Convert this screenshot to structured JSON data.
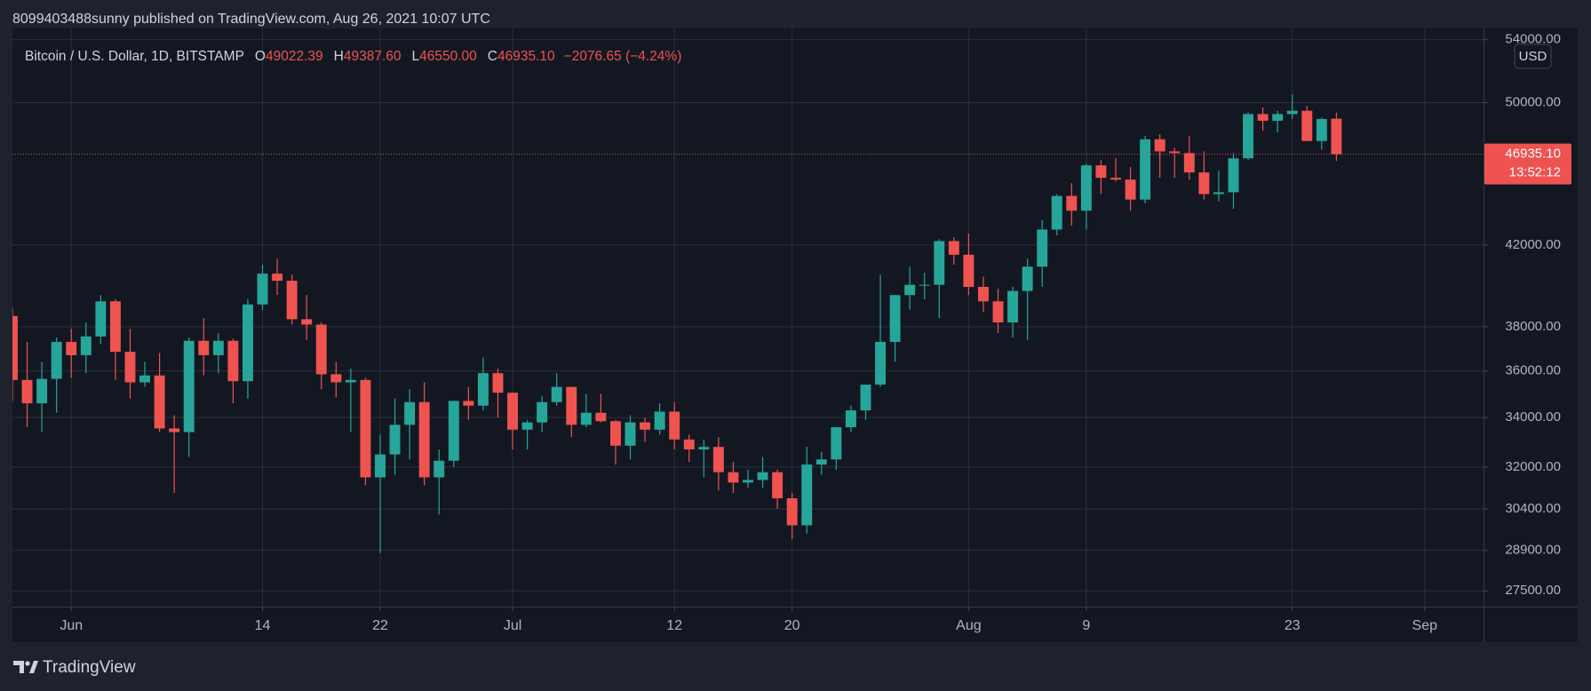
{
  "header": {
    "text": "8099403488sunny published on TradingView.com, Aug 26, 2021 10:07 UTC"
  },
  "footer": {
    "brand": "TradingView"
  },
  "chart_data": {
    "type": "candlestick",
    "symbol": "Bitcoin / U.S. Dollar, 1D, BITSTAMP",
    "ohlc_labels": [
      "O",
      "H",
      "L",
      "C"
    ],
    "ohlc_values": [
      "49022.39",
      "49387.60",
      "46550.00",
      "46935.10"
    ],
    "change": "−2076.65 (−4.24%)",
    "currency": "USD",
    "last_price_label": "46935.10",
    "countdown": "13:52:12",
    "up_color": "#26a69a",
    "down_color": "#ef5350",
    "log_scale": true,
    "grid": true,
    "x": [
      "05-28",
      "05-29",
      "05-30",
      "05-31",
      "06-01",
      "06-02",
      "06-03",
      "06-04",
      "06-05",
      "06-06",
      "06-07",
      "06-08",
      "06-09",
      "06-10",
      "06-11",
      "06-12",
      "06-13",
      "06-14",
      "06-15",
      "06-16",
      "06-17",
      "06-18",
      "06-19",
      "06-20",
      "06-21",
      "06-22",
      "06-23",
      "06-24",
      "06-25",
      "06-26",
      "06-27",
      "06-28",
      "06-29",
      "06-30",
      "07-01",
      "07-02",
      "07-03",
      "07-04",
      "07-05",
      "07-06",
      "07-07",
      "07-08",
      "07-09",
      "07-10",
      "07-11",
      "07-12",
      "07-13",
      "07-14",
      "07-15",
      "07-16",
      "07-17",
      "07-18",
      "07-19",
      "07-20",
      "07-21",
      "07-22",
      "07-23",
      "07-24",
      "07-25",
      "07-26",
      "07-27",
      "07-28",
      "07-29",
      "07-30",
      "07-31",
      "08-01",
      "08-02",
      "08-03",
      "08-04",
      "08-05",
      "08-06",
      "08-07",
      "08-08",
      "08-09",
      "08-10",
      "08-11",
      "08-12",
      "08-13",
      "08-14",
      "08-15",
      "08-16",
      "08-17",
      "08-18",
      "08-19",
      "08-20",
      "08-21",
      "08-22",
      "08-23",
      "08-24",
      "08-25",
      "08-26"
    ],
    "open": [
      38500,
      35600,
      34600,
      35650,
      37300,
      36700,
      37550,
      39200,
      36850,
      35500,
      35800,
      33550,
      33400,
      37350,
      36700,
      37350,
      35550,
      39050,
      40550,
      40200,
      38350,
      38100,
      35850,
      35500,
      35600,
      31600,
      32500,
      33700,
      34650,
      31600,
      32250,
      34700,
      34500,
      35900,
      35050,
      33500,
      33800,
      34650,
      35300,
      33700,
      34200,
      33850,
      32850,
      33800,
      33500,
      34250,
      33100,
      32700,
      32800,
      31800,
      31400,
      31500,
      31800,
      30800,
      29800,
      32100,
      32300,
      33600,
      34300,
      35400,
      37300,
      39500,
      40000,
      40000,
      42200,
      41500,
      39900,
      39200,
      38200,
      39700,
      40900,
      42800,
      44600,
      43800,
      46300,
      45600,
      45500,
      44400,
      47800,
      47100,
      47000,
      45900,
      44700,
      44800,
      46700,
      49300,
      48900,
      49300,
      49500,
      47700,
      49022.39
    ],
    "high": [
      38900,
      37300,
      36400,
      37500,
      37900,
      38200,
      39500,
      39300,
      37900,
      36400,
      36800,
      34100,
      37500,
      38400,
      37700,
      37450,
      39300,
      41000,
      41300,
      40500,
      39500,
      38200,
      36400,
      36100,
      35700,
      33300,
      34800,
      35200,
      35500,
      32700,
      34700,
      35300,
      36600,
      36100,
      35050,
      33900,
      34900,
      35900,
      35300,
      35000,
      35000,
      33900,
      34100,
      34000,
      34600,
      34650,
      33300,
      33100,
      33200,
      32200,
      31900,
      32400,
      31900,
      31000,
      32800,
      32600,
      33600,
      34500,
      35400,
      40500,
      39500,
      40900,
      40600,
      42300,
      42400,
      42600,
      40400,
      39800,
      39900,
      41300,
      43300,
      44700,
      45300,
      46400,
      46600,
      46700,
      46200,
      48000,
      48100,
      47300,
      48000,
      47100,
      46000,
      47000,
      49400,
      49700,
      49500,
      50500,
      49800,
      49100,
      49387.6
    ],
    "low": [
      34700,
      33600,
      33400,
      34200,
      35700,
      35900,
      37200,
      35600,
      34800,
      35300,
      33400,
      31000,
      32400,
      35800,
      35900,
      34600,
      34800,
      38800,
      39500,
      38100,
      37400,
      35200,
      34850,
      33400,
      31300,
      28800,
      31700,
      32300,
      31300,
      30200,
      32000,
      33900,
      34300,
      34000,
      32700,
      32700,
      33400,
      34500,
      33200,
      33600,
      33800,
      32100,
      32300,
      33000,
      33300,
      32700,
      32200,
      31600,
      31100,
      31000,
      31200,
      31200,
      30400,
      29300,
      29500,
      31700,
      31900,
      33400,
      33900,
      35300,
      36400,
      38800,
      39300,
      38400,
      41000,
      39500,
      38700,
      37700,
      37500,
      37400,
      39900,
      42500,
      43000,
      42800,
      44700,
      45400,
      43800,
      44200,
      45600,
      45600,
      45500,
      44400,
      44300,
      43900,
      46600,
      48300,
      48200,
      49000,
      47700,
      47200,
      46550
    ],
    "close": [
      35600,
      34600,
      35650,
      37300,
      36700,
      37550,
      39200,
      36850,
      35500,
      35800,
      33550,
      33400,
      37350,
      36700,
      37350,
      35550,
      39050,
      40550,
      40200,
      38350,
      38100,
      35850,
      35500,
      35600,
      31600,
      32500,
      33700,
      34650,
      31600,
      32250,
      34700,
      34500,
      35900,
      35050,
      33500,
      33800,
      34650,
      35300,
      33700,
      34200,
      33850,
      32850,
      33800,
      33500,
      34250,
      33100,
      32700,
      32800,
      31800,
      31400,
      31500,
      31800,
      30800,
      29800,
      32100,
      32300,
      33600,
      34300,
      35400,
      37300,
      39500,
      40000,
      40000,
      42200,
      41500,
      39900,
      39200,
      38200,
      39700,
      40900,
      42800,
      44600,
      43800,
      46300,
      45600,
      45500,
      44400,
      47800,
      47100,
      47000,
      45900,
      44700,
      44800,
      46700,
      49300,
      48900,
      49300,
      49500,
      47700,
      49000,
      46935.1
    ],
    "xlim": [
      "05-28",
      "09-05"
    ],
    "xticks": [
      {
        "value": "06-01",
        "label": "Jun"
      },
      {
        "value": "06-14",
        "label": "14"
      },
      {
        "value": "06-22",
        "label": "22"
      },
      {
        "value": "07-01",
        "label": "Jul"
      },
      {
        "value": "07-12",
        "label": "12"
      },
      {
        "value": "07-20",
        "label": "20"
      },
      {
        "value": "08-01",
        "label": "Aug"
      },
      {
        "value": "08-09",
        "label": "9"
      },
      {
        "value": "08-23",
        "label": "23"
      },
      {
        "value": "09-01",
        "label": "Sep"
      }
    ],
    "ylim": [
      26975,
      54750
    ],
    "yticks": [
      {
        "value": 27500,
        "label": "27500.00"
      },
      {
        "value": 28900,
        "label": "28900.00"
      },
      {
        "value": 30400,
        "label": "30400.00"
      },
      {
        "value": 32000,
        "label": "32000.00"
      },
      {
        "value": 34000,
        "label": "34000.00"
      },
      {
        "value": 36000,
        "label": "36000.00"
      },
      {
        "value": 38000,
        "label": "38000.00"
      },
      {
        "value": 42000,
        "label": "42000.00"
      },
      {
        "value": 50000,
        "label": "50000.00"
      },
      {
        "value": 54000,
        "label": "54000.00"
      }
    ]
  }
}
